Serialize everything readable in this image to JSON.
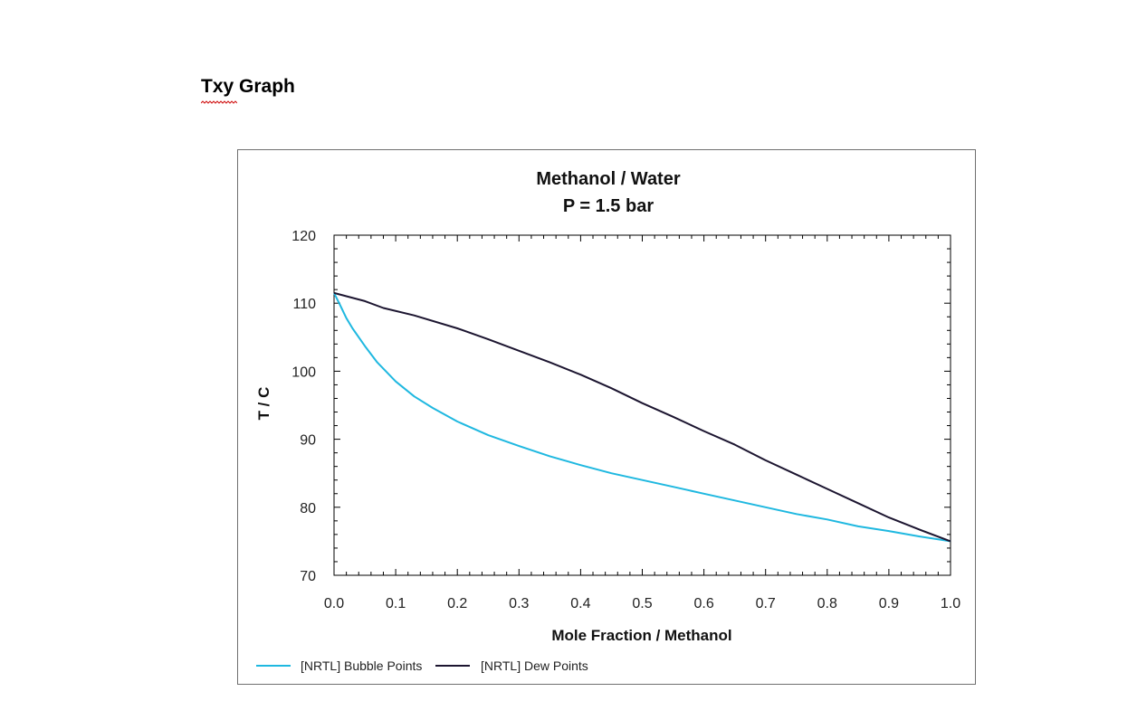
{
  "document": {
    "heading": "Txy Graph"
  },
  "colors": {
    "bubble": "#1fb8e0",
    "dew": "#1c1530",
    "axis": "#000000",
    "frame": "#6f6f6f"
  },
  "chart_data": {
    "type": "line",
    "title": [
      "Methanol / Water",
      "P = 1.5 bar"
    ],
    "xlabel": "Mole Fraction / Methanol",
    "ylabel": "T / C",
    "xlim": [
      0.0,
      1.0
    ],
    "ylim": [
      70,
      120
    ],
    "xticks": [
      "0.0",
      "0.1",
      "0.2",
      "0.3",
      "0.4",
      "0.5",
      "0.6",
      "0.7",
      "0.8",
      "0.9",
      "1.0"
    ],
    "yticks": [
      "70",
      "80",
      "90",
      "100",
      "110",
      "120"
    ],
    "grid": false,
    "legend_position": "bottom",
    "series": [
      {
        "name": "[NRTL] Bubble Points",
        "color_key": "bubble",
        "points": [
          [
            0.0,
            111.5
          ],
          [
            0.01,
            109.7
          ],
          [
            0.02,
            107.8
          ],
          [
            0.03,
            106.3
          ],
          [
            0.05,
            103.7
          ],
          [
            0.07,
            101.3
          ],
          [
            0.1,
            98.5
          ],
          [
            0.13,
            96.3
          ],
          [
            0.16,
            94.6
          ],
          [
            0.2,
            92.6
          ],
          [
            0.25,
            90.6
          ],
          [
            0.3,
            89.0
          ],
          [
            0.35,
            87.5
          ],
          [
            0.4,
            86.2
          ],
          [
            0.45,
            85.0
          ],
          [
            0.5,
            84.0
          ],
          [
            0.55,
            83.0
          ],
          [
            0.6,
            82.0
          ],
          [
            0.65,
            81.0
          ],
          [
            0.7,
            80.0
          ],
          [
            0.75,
            79.0
          ],
          [
            0.8,
            78.2
          ],
          [
            0.85,
            77.2
          ],
          [
            0.9,
            76.5
          ],
          [
            0.95,
            75.7
          ],
          [
            1.0,
            75.0
          ]
        ]
      },
      {
        "name": "[NRTL] Dew Points",
        "color_key": "dew",
        "points": [
          [
            0.0,
            111.5
          ],
          [
            0.05,
            110.3
          ],
          [
            0.08,
            109.3
          ],
          [
            0.13,
            108.2
          ],
          [
            0.2,
            106.3
          ],
          [
            0.25,
            104.7
          ],
          [
            0.3,
            103.0
          ],
          [
            0.35,
            101.3
          ],
          [
            0.4,
            99.5
          ],
          [
            0.45,
            97.5
          ],
          [
            0.5,
            95.3
          ],
          [
            0.55,
            93.3
          ],
          [
            0.6,
            91.2
          ],
          [
            0.65,
            89.2
          ],
          [
            0.7,
            86.9
          ],
          [
            0.75,
            84.8
          ],
          [
            0.8,
            82.7
          ],
          [
            0.85,
            80.6
          ],
          [
            0.9,
            78.5
          ],
          [
            0.95,
            76.7
          ],
          [
            1.0,
            75.0
          ]
        ]
      }
    ]
  }
}
